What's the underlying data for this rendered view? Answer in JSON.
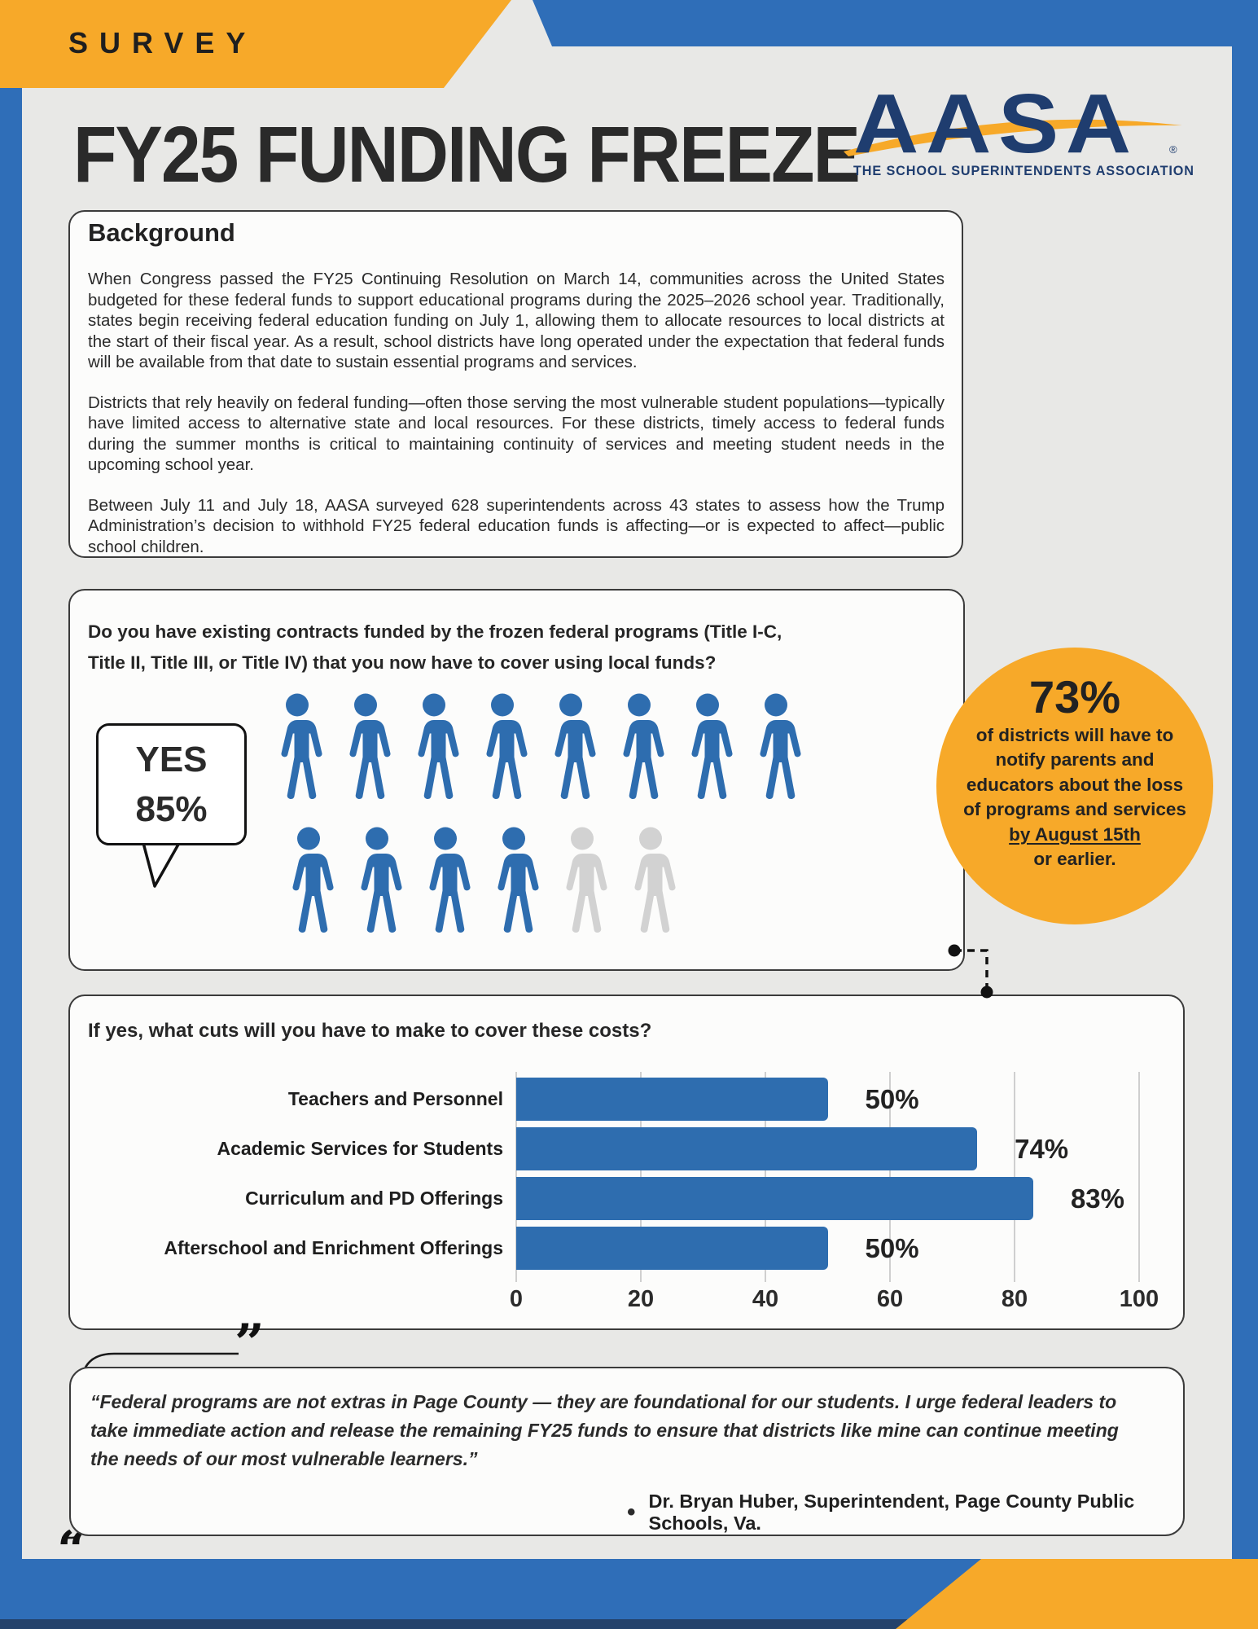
{
  "banner": {
    "label": "SURVEY"
  },
  "header": {
    "title": "FY25 FUNDING FREEZE"
  },
  "logo": {
    "wordmark": "AASA",
    "registered": "®",
    "tagline": "THE SCHOOL SUPERINTENDENTS ASSOCIATION"
  },
  "background": {
    "heading": "Background",
    "paragraphs": [
      "When Congress passed the FY25 Continuing Resolution on March 14, communities across the United States budgeted for these federal funds to support educational programs during the 2025–2026 school year. Traditionally, states begin receiving federal education funding on July 1, allowing them to allocate resources to local districts at the start of their fiscal year. As a result, school districts have long operated under the expectation that federal funds will be available from that date to sustain essential programs and services.",
      "Districts that rely heavily on federal funding—often those serving the most vulnerable student populations—typically have limited access to alternative state and local resources. For these districts, timely access to federal funds during the summer months is critical to maintaining continuity of services and meeting student needs in the upcoming school year.",
      "Between July 11 and July 18, AASA surveyed 628 superintendents across 43 states to assess how the Trump Administration’s decision to withhold FY25 federal education funds is affecting—or is expected to affect—public school children."
    ]
  },
  "survey_question": {
    "text": "Do you have existing contracts funded by the frozen federal programs (Title I-C, Title II, Title III, or Title IV) that you now have to cover using local funds?",
    "answer_label": "YES",
    "answer_value": "85%",
    "pictogram": {
      "rows": [
        8,
        6
      ],
      "filled": 12,
      "total": 14,
      "filled_color": "#2E6DAF",
      "empty_color": "#D2D2D2"
    }
  },
  "highlight_stat": {
    "value": "73%",
    "lines": [
      "of districts will have to",
      "notify parents and",
      "educators about the loss",
      "of programs and services"
    ],
    "underlined_line": "by August 15th",
    "last_line": "or earlier."
  },
  "chart_data": {
    "type": "bar",
    "orientation": "horizontal",
    "title": "If yes, what cuts will you have to make to cover these costs?",
    "categories": [
      "Teachers and Personnel",
      "Academic Services for Students",
      "Curriculum and PD Offerings",
      "Afterschool and Enrichment Offerings"
    ],
    "values": [
      50,
      74,
      83,
      50
    ],
    "value_labels": [
      "50%",
      "74%",
      "83%",
      "50%"
    ],
    "xlim": [
      0,
      100
    ],
    "xticks": [
      0,
      20,
      40,
      60,
      80,
      100
    ],
    "grid": true,
    "bar_color": "#2E6DAF"
  },
  "quote": {
    "icon_close": "”",
    "icon_open": "“",
    "text": "“Federal programs are not extras in Page County — they are foundational for our students. I urge federal leaders to take immediate action and release the remaining FY25 funds to ensure that districts like mine can continue meeting the needs of our most vulnerable learners.”",
    "bullet": "•",
    "attribution": "Dr. Bryan Huber, Superintendent, Page County Public Schools, Va."
  },
  "colors": {
    "accent_orange": "#F7A929",
    "frame_blue": "#2F6EB8",
    "bar_blue": "#2E6DAF",
    "icon_gray": "#D2D2D2",
    "logo_navy": "#1F3D6F",
    "footer_navy": "#24426B"
  }
}
